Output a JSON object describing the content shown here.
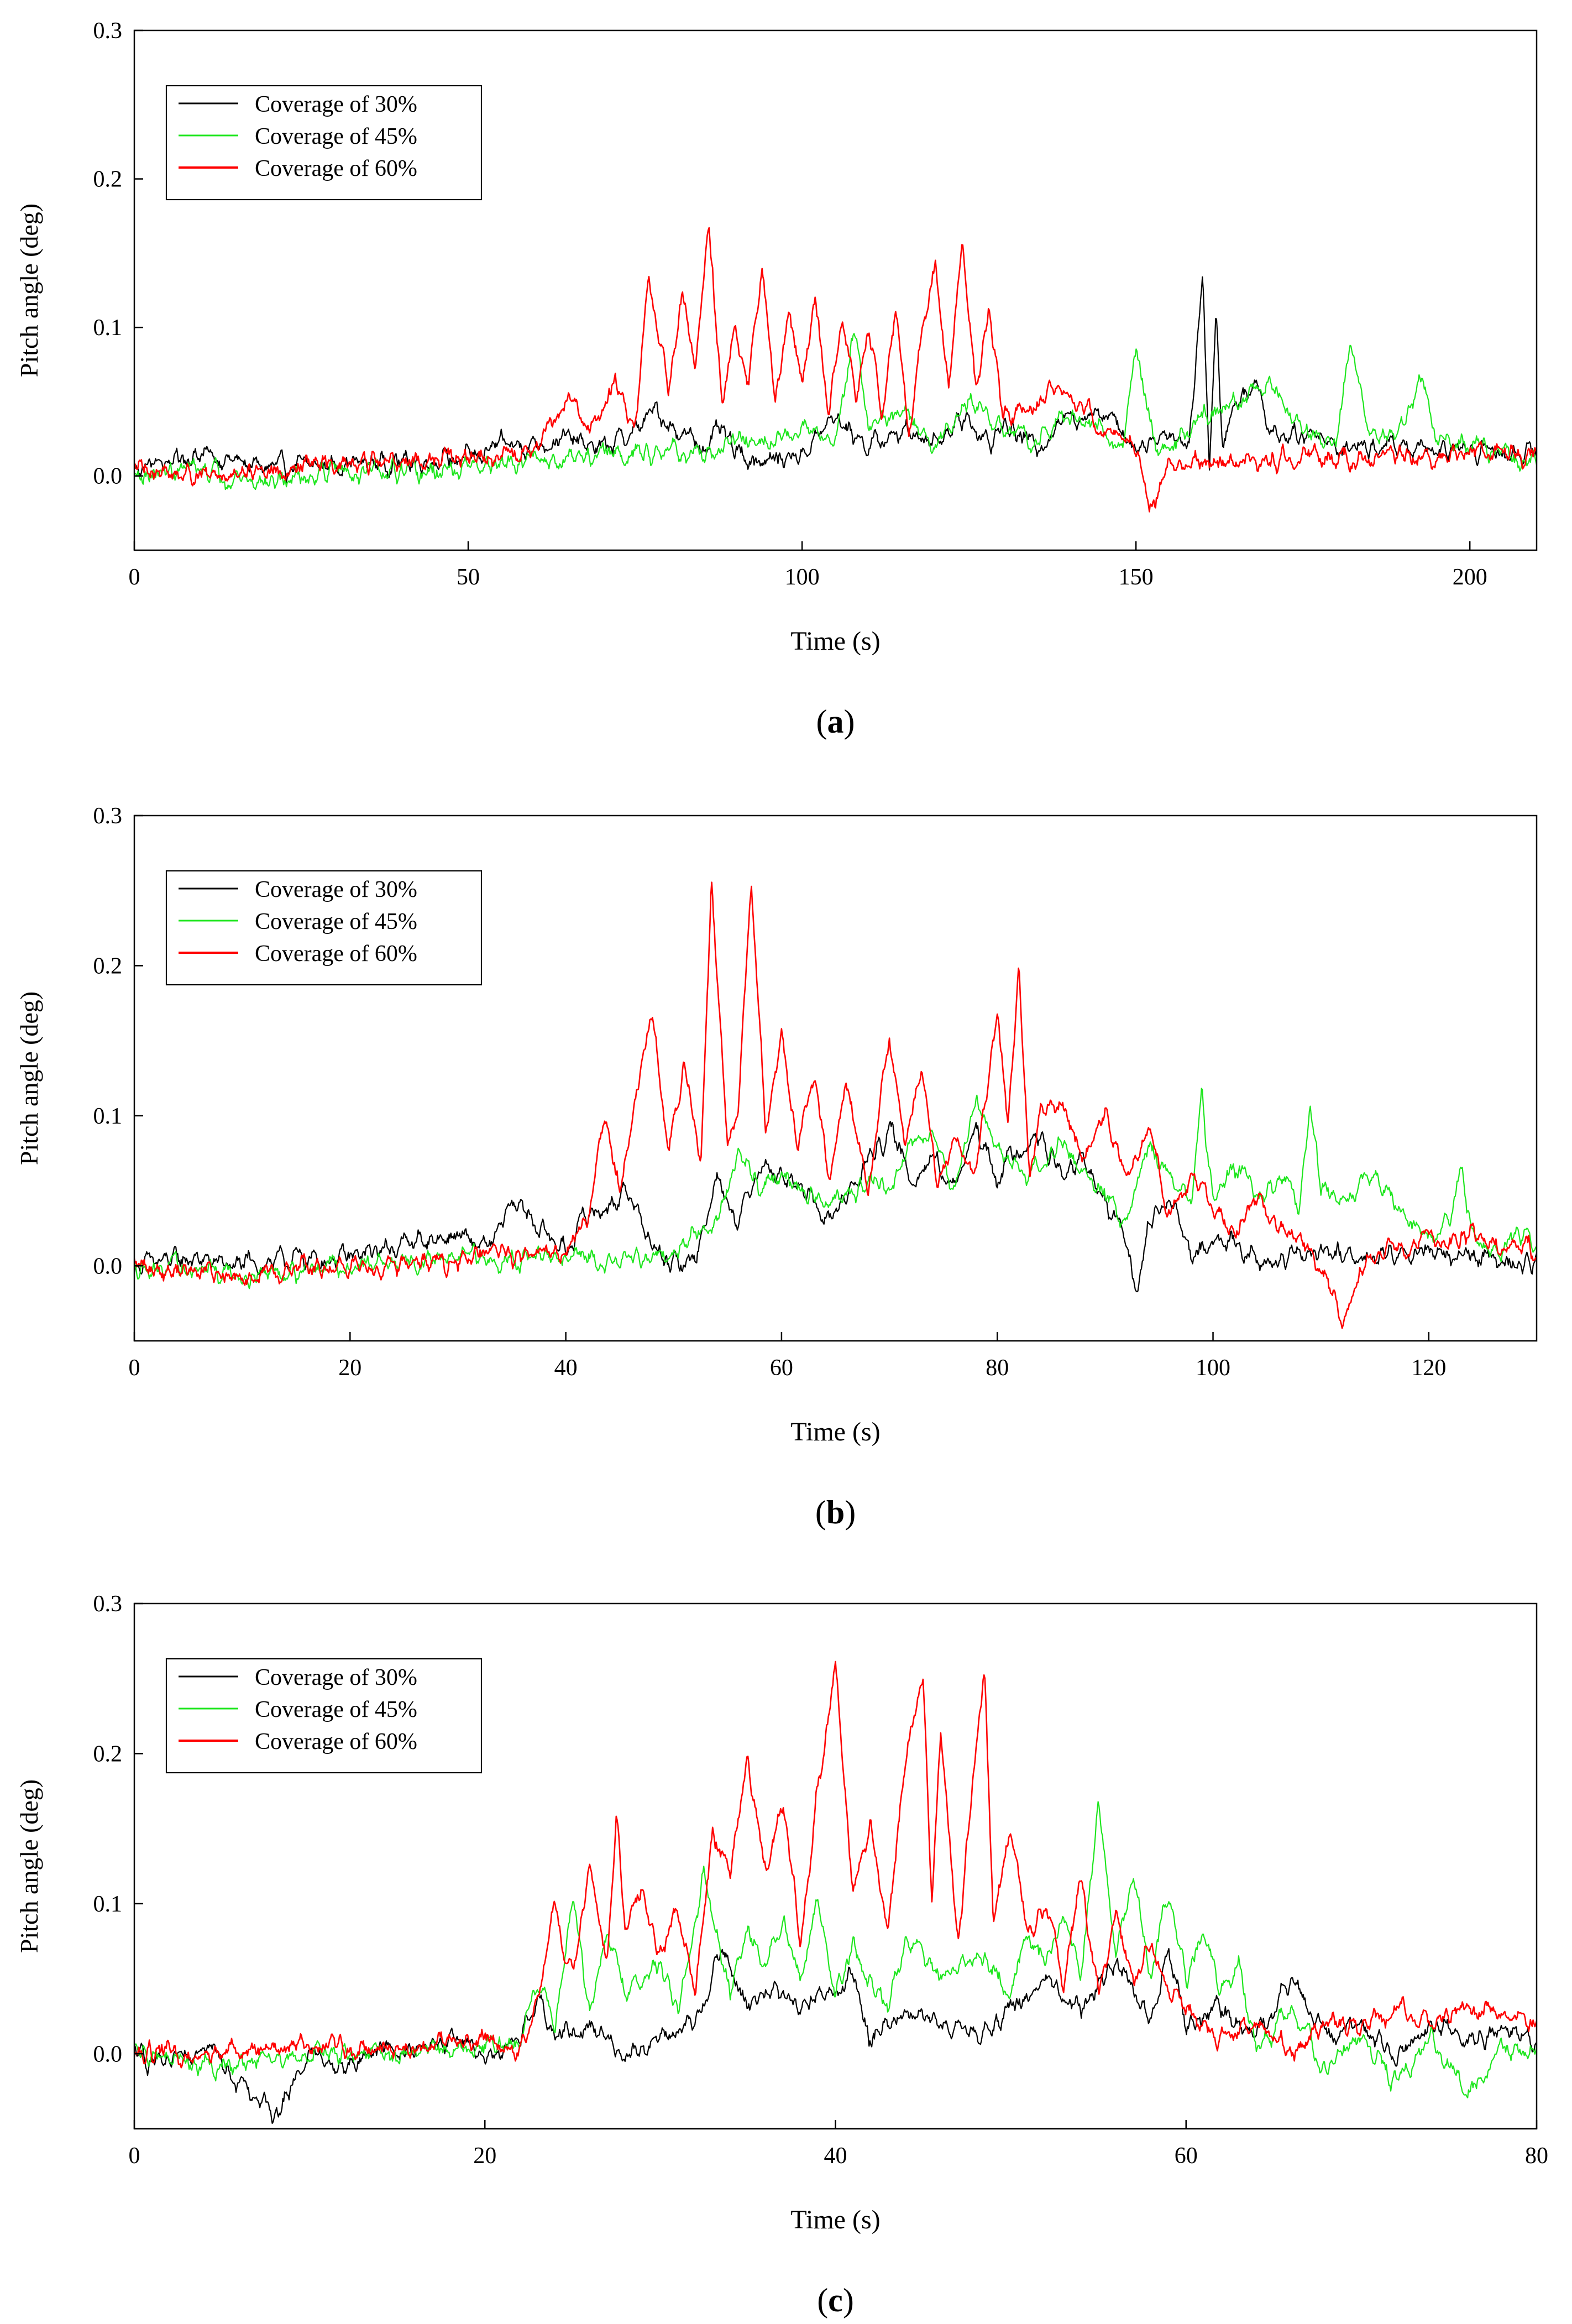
{
  "figure": {
    "panels": [
      "a",
      "b",
      "c"
    ]
  },
  "chart_data": [
    {
      "type": "line",
      "panel_label": "a",
      "xlabel": "Time (s)",
      "ylabel": "Pitch angle (deg)",
      "xlim": [
        0,
        210
      ],
      "ylim": [
        -0.05,
        0.3
      ],
      "xticks": [
        0,
        50,
        100,
        150,
        200
      ],
      "yticks": [
        0.0,
        0.1,
        0.2,
        0.3
      ],
      "legend_position": "top-left",
      "series": [
        {
          "name": "Coverage of 30%",
          "color": "#000000",
          "x": [
            0,
            10,
            20,
            30,
            40,
            50,
            55,
            60,
            65,
            70,
            75,
            78,
            80,
            85,
            88,
            90,
            95,
            100,
            105,
            110,
            115,
            120,
            125,
            128,
            130,
            135,
            140,
            145,
            150,
            155,
            158,
            160,
            161,
            162,
            163,
            165,
            168,
            170,
            175,
            180,
            185,
            190,
            195,
            200,
            205,
            210
          ],
          "y": [
            0.005,
            0.015,
            0.005,
            0.008,
            0.01,
            0.012,
            0.02,
            0.022,
            0.025,
            0.018,
            0.03,
            0.045,
            0.035,
            0.02,
            0.03,
            0.015,
            0.01,
            0.015,
            0.04,
            0.02,
            0.03,
            0.025,
            0.04,
            0.02,
            0.035,
            0.02,
            0.04,
            0.045,
            0.02,
            0.03,
            0.02,
            0.14,
            0.005,
            0.105,
            0.02,
            0.05,
            0.065,
            0.03,
            0.03,
            0.02,
            0.02,
            0.02,
            0.015,
            0.02,
            0.015,
            0.015
          ]
        },
        {
          "name": "Coverage of 45%",
          "color": "#1ee61e",
          "x": [
            0,
            10,
            20,
            30,
            40,
            50,
            60,
            70,
            75,
            80,
            85,
            90,
            95,
            100,
            105,
            108,
            110,
            115,
            120,
            125,
            130,
            135,
            140,
            145,
            148,
            150,
            153,
            155,
            160,
            165,
            170,
            175,
            180,
            182,
            185,
            190,
            193,
            195,
            200,
            205,
            210
          ],
          "y": [
            0.0,
            0.005,
            -0.005,
            0.005,
            0.0,
            0.005,
            0.01,
            0.015,
            0.015,
            0.02,
            0.01,
            0.025,
            0.02,
            0.035,
            0.025,
            0.105,
            0.03,
            0.045,
            0.02,
            0.05,
            0.03,
            0.025,
            0.04,
            0.03,
            0.02,
            0.085,
            0.02,
            0.02,
            0.04,
            0.05,
            0.06,
            0.03,
            0.02,
            0.09,
            0.025,
            0.03,
            0.065,
            0.025,
            0.02,
            0.015,
            0.01
          ]
        },
        {
          "name": "Coverage of 60%",
          "color": "#ff0000",
          "x": [
            0,
            10,
            20,
            30,
            40,
            50,
            60,
            65,
            68,
            72,
            75,
            77,
            80,
            82,
            84,
            86,
            88,
            90,
            92,
            94,
            96,
            98,
            100,
            102,
            104,
            106,
            108,
            110,
            112,
            114,
            116,
            118,
            120,
            122,
            124,
            126,
            128,
            130,
            135,
            140,
            145,
            150,
            152,
            155,
            160,
            165,
            170,
            175,
            180,
            185,
            190,
            195,
            200,
            205,
            210
          ],
          "y": [
            0.005,
            0.0,
            0.005,
            0.008,
            0.01,
            0.012,
            0.015,
            0.055,
            0.03,
            0.06,
            0.035,
            0.13,
            0.06,
            0.125,
            0.07,
            0.17,
            0.05,
            0.1,
            0.06,
            0.14,
            0.05,
            0.11,
            0.06,
            0.12,
            0.04,
            0.11,
            0.05,
            0.1,
            0.04,
            0.11,
            0.03,
            0.1,
            0.14,
            0.06,
            0.155,
            0.06,
            0.11,
            0.04,
            0.05,
            0.06,
            0.03,
            0.02,
            -0.02,
            0.005,
            0.01,
            0.008,
            0.01,
            0.012,
            0.015,
            0.01,
            0.015,
            0.012,
            0.015,
            0.015,
            0.012
          ]
        }
      ]
    },
    {
      "type": "line",
      "panel_label": "b",
      "xlabel": "Time (s)",
      "ylabel": "Pitch angle (deg)",
      "xlim": [
        0,
        130
      ],
      "ylim": [
        -0.05,
        0.3
      ],
      "xticks": [
        0,
        20,
        40,
        60,
        80,
        100,
        120
      ],
      "yticks": [
        0.0,
        0.1,
        0.2,
        0.3
      ],
      "legend_position": "top-left",
      "series": [
        {
          "name": "Coverage of 30%",
          "color": "#000000",
          "x": [
            0,
            5,
            10,
            15,
            20,
            25,
            30,
            33,
            35,
            37,
            40,
            42,
            44,
            46,
            48,
            50,
            52,
            54,
            56,
            58,
            60,
            62,
            64,
            66,
            68,
            70,
            72,
            74,
            76,
            78,
            80,
            82,
            84,
            86,
            88,
            90,
            92,
            93,
            94,
            96,
            98,
            100,
            105,
            110,
            115,
            120,
            125,
            130
          ],
          "y": [
            0.0,
            0.005,
            0.0,
            0.005,
            0.005,
            0.015,
            0.02,
            0.01,
            0.045,
            0.03,
            0.01,
            0.035,
            0.04,
            0.05,
            0.01,
            0.0,
            0.005,
            0.06,
            0.03,
            0.07,
            0.06,
            0.05,
            0.03,
            0.045,
            0.07,
            0.09,
            0.06,
            0.07,
            0.05,
            0.09,
            0.06,
            0.08,
            0.085,
            0.06,
            0.07,
            0.04,
            0.02,
            -0.025,
            0.03,
            0.04,
            0.01,
            0.02,
            0.0,
            0.01,
            0.005,
            0.01,
            0.005,
            0.0
          ]
        },
        {
          "name": "Coverage of 45%",
          "color": "#1ee61e",
          "x": [
            0,
            10,
            20,
            30,
            35,
            40,
            45,
            50,
            54,
            56,
            58,
            60,
            62,
            64,
            66,
            68,
            70,
            72,
            74,
            76,
            78,
            80,
            82,
            84,
            86,
            88,
            90,
            92,
            94,
            96,
            98,
            99,
            100,
            102,
            104,
            106,
            108,
            109,
            110,
            112,
            114,
            116,
            118,
            120,
            122,
            123,
            124,
            126,
            128,
            130
          ],
          "y": [
            0.0,
            -0.005,
            0.0,
            0.005,
            0.005,
            0.005,
            0.005,
            0.01,
            0.03,
            0.07,
            0.055,
            0.06,
            0.05,
            0.04,
            0.045,
            0.06,
            0.05,
            0.08,
            0.09,
            0.05,
            0.11,
            0.08,
            0.06,
            0.07,
            0.08,
            0.06,
            0.05,
            0.03,
            0.08,
            0.06,
            0.04,
            0.115,
            0.04,
            0.07,
            0.05,
            0.06,
            0.04,
            0.115,
            0.05,
            0.04,
            0.06,
            0.05,
            0.03,
            0.02,
            0.035,
            0.065,
            0.02,
            0.01,
            0.02,
            0.015
          ]
        },
        {
          "name": "Coverage of 60%",
          "color": "#ff0000",
          "x": [
            0,
            10,
            20,
            30,
            40,
            42,
            43.5,
            45,
            46.5,
            48,
            49.5,
            51,
            52.5,
            53.5,
            55,
            56,
            57.2,
            58.5,
            60,
            61.5,
            63,
            64.5,
            66,
            68,
            70,
            71.5,
            73,
            74.5,
            76,
            78,
            80,
            81,
            82,
            83,
            84,
            86,
            88,
            90,
            92,
            94,
            96,
            98,
            100,
            102,
            104,
            106,
            108,
            110,
            112,
            114,
            116,
            118,
            120,
            122,
            124,
            126,
            128,
            130
          ],
          "y": [
            0.0,
            -0.005,
            0.0,
            0.005,
            0.01,
            0.03,
            0.1,
            0.05,
            0.11,
            0.17,
            0.08,
            0.13,
            0.07,
            0.255,
            0.08,
            0.11,
            0.25,
            0.09,
            0.15,
            0.08,
            0.13,
            0.06,
            0.12,
            0.05,
            0.15,
            0.08,
            0.13,
            0.05,
            0.09,
            0.06,
            0.17,
            0.1,
            0.2,
            0.06,
            0.1,
            0.11,
            0.07,
            0.1,
            0.06,
            0.09,
            0.03,
            0.06,
            0.04,
            0.02,
            0.05,
            0.03,
            0.02,
            0.0,
            -0.035,
            0.0,
            0.01,
            0.005,
            0.02,
            0.015,
            0.025,
            0.01,
            0.015,
            0.01
          ]
        }
      ]
    },
    {
      "type": "line",
      "panel_label": "c",
      "xlabel": "Time (s)",
      "ylabel": "Pitch angle (deg)",
      "xlim": [
        0,
        80
      ],
      "ylim": [
        -0.05,
        0.3
      ],
      "xticks": [
        0,
        20,
        40,
        60,
        80
      ],
      "yticks": [
        0.0,
        0.1,
        0.2,
        0.3
      ],
      "legend_position": "top-left",
      "series": [
        {
          "name": "Coverage of 30%",
          "color": "#000000",
          "x": [
            0,
            2,
            4,
            6,
            8,
            10,
            12,
            14,
            16,
            18,
            20,
            22,
            23,
            24,
            26,
            28,
            30,
            32,
            33.5,
            35,
            36,
            38,
            40,
            41,
            42,
            44,
            46,
            48,
            50,
            52,
            54,
            56,
            58,
            59,
            60,
            62,
            64,
            66,
            68,
            70,
            72,
            74,
            76,
            78,
            80
          ],
          "y": [
            0.0,
            -0.01,
            0.01,
            -0.02,
            -0.04,
            0.0,
            -0.01,
            0.005,
            0.0,
            0.01,
            0.0,
            0.005,
            0.04,
            0.01,
            0.02,
            0.0,
            0.01,
            0.02,
            0.07,
            0.03,
            0.045,
            0.03,
            0.04,
            0.05,
            0.01,
            0.03,
            0.02,
            0.01,
            0.03,
            0.05,
            0.03,
            0.06,
            0.02,
            0.07,
            0.02,
            0.03,
            0.01,
            0.05,
            0.01,
            0.02,
            0.0,
            0.02,
            0.01,
            0.015,
            0.01
          ]
        },
        {
          "name": "Coverage of 45%",
          "color": "#1ee61e",
          "x": [
            0,
            5,
            10,
            15,
            20,
            22,
            23,
            24,
            25,
            26,
            27,
            28,
            30,
            31,
            32.5,
            34,
            35,
            36,
            37,
            38,
            39,
            40,
            41,
            42,
            43,
            44,
            46,
            48,
            50,
            51,
            52,
            53,
            54,
            55,
            56,
            57,
            58,
            59,
            60,
            61,
            62,
            63,
            64,
            66,
            68,
            70,
            72,
            74,
            76,
            78,
            80
          ],
          "y": [
            0.0,
            -0.01,
            0.0,
            0.0,
            0.005,
            0.005,
            0.05,
            0.02,
            0.105,
            0.03,
            0.08,
            0.04,
            0.06,
            0.03,
            0.12,
            0.04,
            0.08,
            0.06,
            0.09,
            0.05,
            0.1,
            0.04,
            0.07,
            0.05,
            0.03,
            0.08,
            0.05,
            0.07,
            0.04,
            0.08,
            0.06,
            0.09,
            0.05,
            0.17,
            0.06,
            0.12,
            0.05,
            0.11,
            0.05,
            0.08,
            0.04,
            0.06,
            0.0,
            0.03,
            -0.01,
            0.01,
            -0.02,
            0.01,
            -0.03,
            0.005,
            0.0
          ]
        },
        {
          "name": "Coverage of 60%",
          "color": "#ff0000",
          "x": [
            0,
            5,
            10,
            15,
            20,
            22,
            23,
            24,
            25,
            26,
            27,
            27.5,
            28,
            29,
            30,
            31,
            32,
            33,
            34,
            35,
            36,
            37,
            38,
            39,
            40,
            41,
            42,
            43,
            44,
            45,
            45.5,
            46,
            47,
            48,
            48.5,
            49,
            50,
            51,
            52,
            53,
            54,
            55,
            56,
            57,
            58,
            59,
            60,
            62,
            64,
            66,
            68,
            70,
            72,
            74,
            76,
            78,
            80
          ],
          "y": [
            0.0,
            0.0,
            0.005,
            0.005,
            0.01,
            0.0,
            0.04,
            0.095,
            0.05,
            0.13,
            0.06,
            0.165,
            0.08,
            0.11,
            0.06,
            0.1,
            0.04,
            0.15,
            0.12,
            0.2,
            0.12,
            0.17,
            0.07,
            0.18,
            0.26,
            0.11,
            0.15,
            0.08,
            0.2,
            0.255,
            0.1,
            0.22,
            0.07,
            0.2,
            0.26,
            0.09,
            0.15,
            0.08,
            0.1,
            0.05,
            0.12,
            0.04,
            0.09,
            0.05,
            0.07,
            0.04,
            0.03,
            0.01,
            0.02,
            0.0,
            0.02,
            0.015,
            0.03,
            0.02,
            0.03,
            0.025,
            0.02
          ]
        }
      ]
    }
  ]
}
